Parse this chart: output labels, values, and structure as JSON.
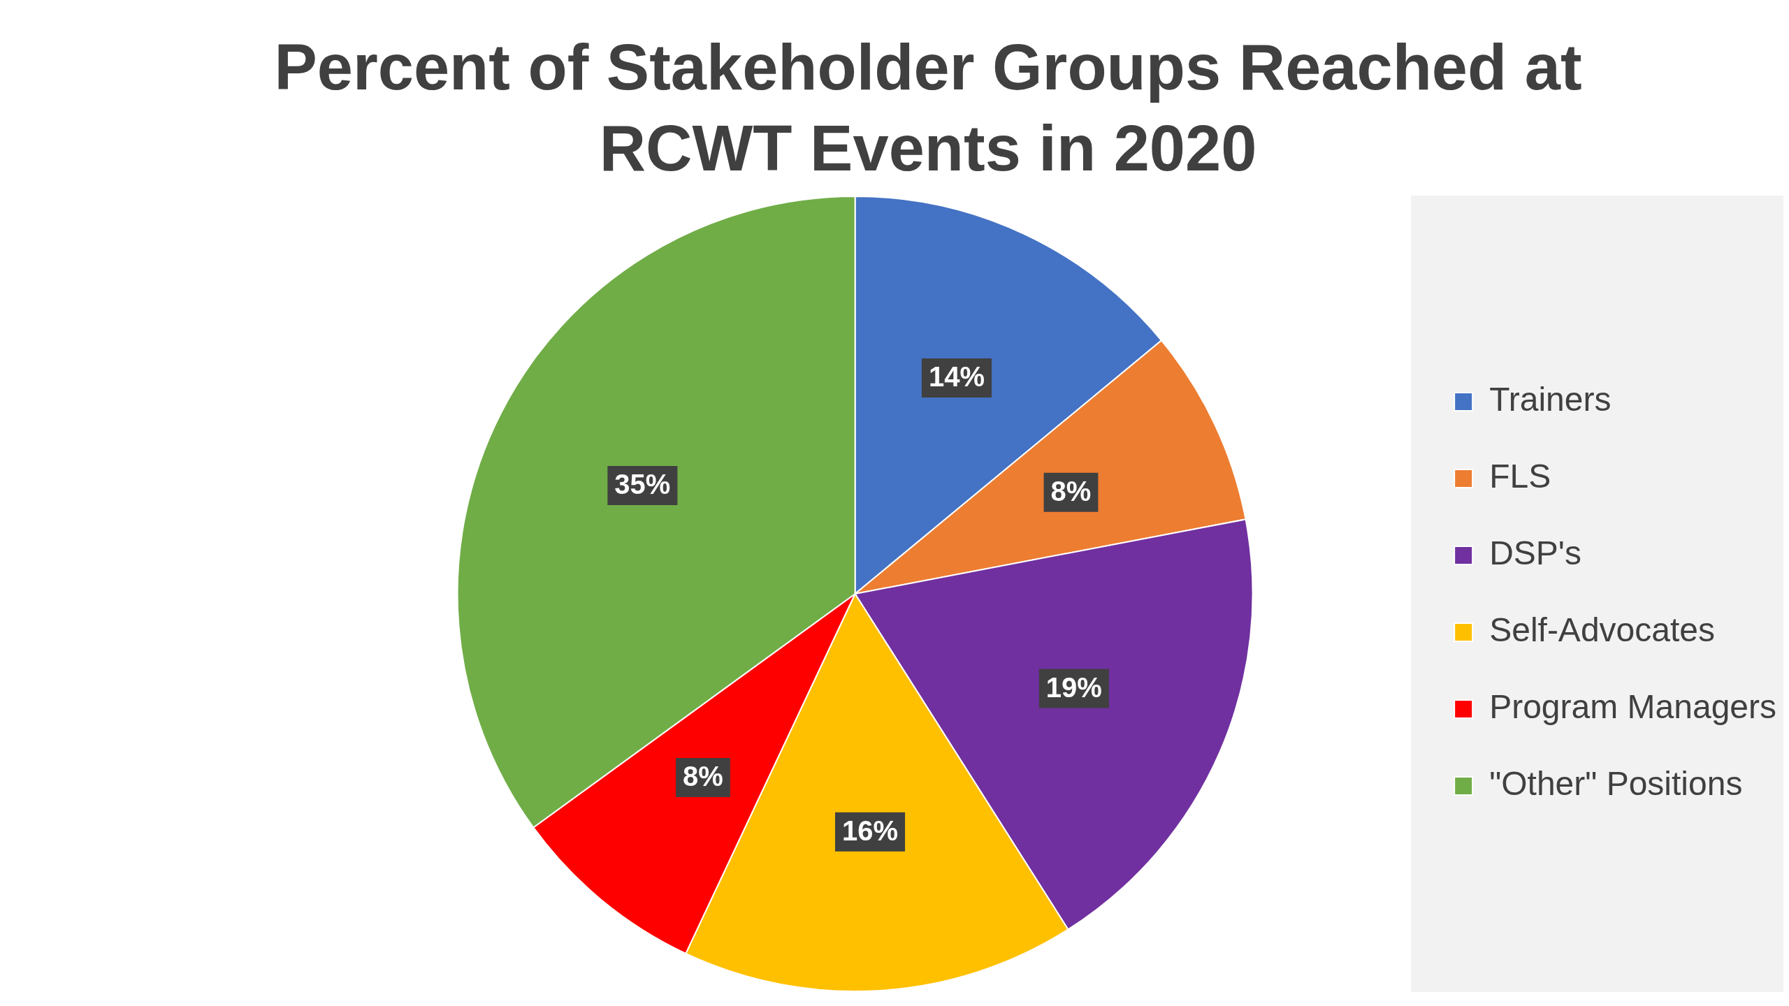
{
  "chart_data": {
    "type": "pie",
    "title": "Percent of Stakeholder Groups Reached at RCWT Events in 2020",
    "categories": [
      "Trainers",
      "FLS",
      "DSP's",
      "Self-Advocates",
      "Program Managers",
      "\"Other\" Positions"
    ],
    "values": [
      14,
      8,
      19,
      16,
      8,
      35
    ],
    "value_labels": [
      "14%",
      "8%",
      "19%",
      "16%",
      "8%",
      "35%"
    ],
    "colors": [
      "#4472c4",
      "#ed7d31",
      "#7030a0",
      "#ffc000",
      "#ff0000",
      "#70ad47"
    ],
    "legend": "right"
  }
}
